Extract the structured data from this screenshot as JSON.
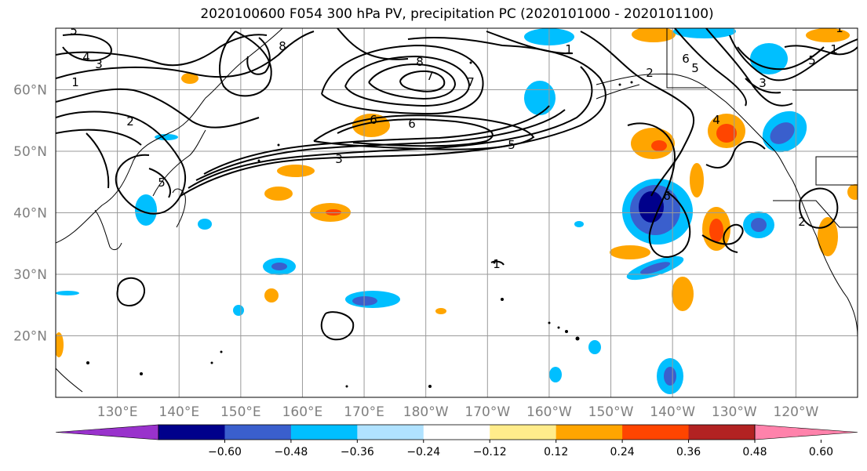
{
  "title": "2020100600 F054 300 hPa PV, precipitation PC (2020101000 - 2020101100)",
  "map": {
    "lon_labels": [
      "130°E",
      "140°E",
      "150°E",
      "160°E",
      "170°E",
      "180°W",
      "170°W",
      "160°W",
      "150°W",
      "140°W",
      "130°W",
      "120°W"
    ],
    "lon_values": [
      130,
      140,
      150,
      160,
      170,
      180,
      190,
      200,
      210,
      220,
      230,
      240
    ],
    "lat_labels": [
      "60°N",
      "50°N",
      "40°N",
      "30°N",
      "20°N"
    ],
    "lat_values": [
      60,
      50,
      40,
      30,
      20
    ],
    "lon_range": [
      120,
      250
    ],
    "lat_range": [
      10,
      70
    ],
    "grid": true
  },
  "contour_labels": [
    "5",
    "4",
    "3",
    "1",
    "2",
    "5",
    "6",
    "8",
    "7",
    "6",
    "7",
    "5",
    "3",
    "8",
    "6",
    "5",
    "1",
    "2",
    "6",
    "3",
    "1",
    "1",
    "1",
    "4",
    "5",
    "2"
  ],
  "colorbar": {
    "ticks": [
      "−0.60",
      "−0.48",
      "−0.36",
      "−0.24",
      "−0.12",
      "0.12",
      "0.24",
      "0.36",
      "0.48",
      "0.60"
    ],
    "colors": [
      "#9932cc",
      "#00008b",
      "#3a5fcd",
      "#00bfff",
      "#b0e2ff",
      "#ffffff",
      "#ffec8b",
      "#ffa500",
      "#ff4500",
      "#b22222",
      "#ff82ab"
    ]
  }
}
